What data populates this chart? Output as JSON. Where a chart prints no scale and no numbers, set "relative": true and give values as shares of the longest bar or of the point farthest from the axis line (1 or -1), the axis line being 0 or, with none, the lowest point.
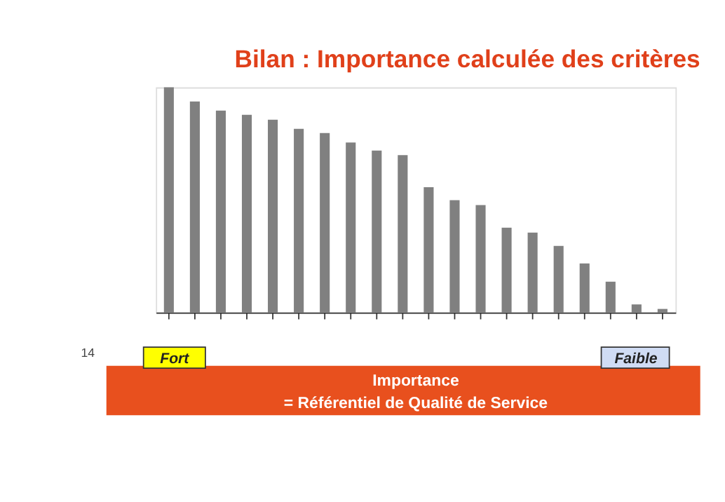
{
  "chart_data": {
    "type": "bar",
    "title": "Bilan : Importance calculée des critères",
    "categories": [
      null,
      null,
      null,
      null,
      null,
      null,
      null,
      null,
      null,
      null,
      null,
      null,
      null,
      null,
      null,
      null,
      null,
      null,
      null,
      null
    ],
    "values": [
      1.0,
      0.937,
      0.897,
      0.878,
      0.856,
      0.816,
      0.797,
      0.755,
      0.719,
      0.699,
      0.557,
      0.499,
      0.477,
      0.377,
      0.355,
      0.296,
      0.218,
      0.137,
      0.036,
      0.016
    ],
    "color": "#808080",
    "relative": true,
    "annotations": [
      "Fort",
      "Faible",
      "Importance",
      "= Référentiel de Qualité de Service",
      "14"
    ]
  }
}
